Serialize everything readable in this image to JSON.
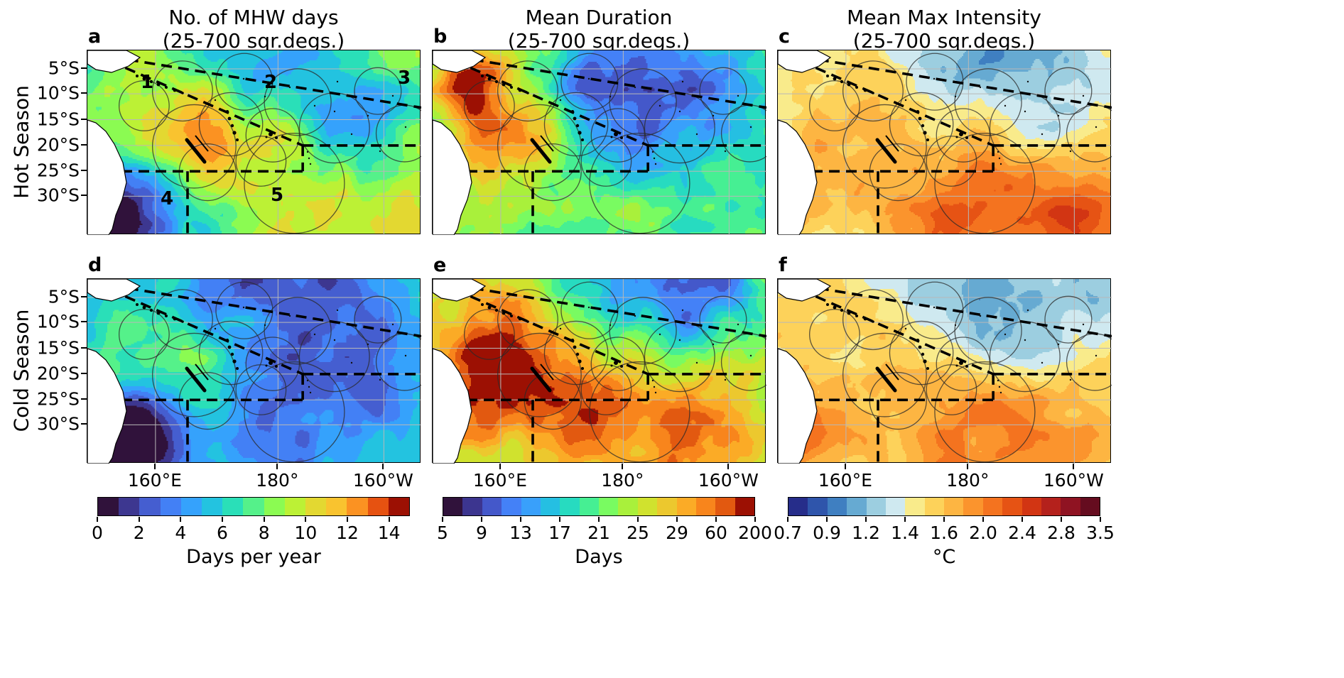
{
  "figure": {
    "background": "#ffffff"
  },
  "columns": [
    {
      "title_line1": "No. of MHW days",
      "title_line2": "(25-700 sqr.degs.)"
    },
    {
      "title_line1": "Mean Duration",
      "title_line2": "(25-700 sqr.degs.)"
    },
    {
      "title_line1": "Mean Max Intensity",
      "title_line2": "(25-700 sqr.degs.)"
    }
  ],
  "rows": [
    {
      "label": "Hot Season"
    },
    {
      "label": "Cold Season"
    }
  ],
  "panels": [
    {
      "letter": "a"
    },
    {
      "letter": "b"
    },
    {
      "letter": "c"
    },
    {
      "letter": "d"
    },
    {
      "letter": "e"
    },
    {
      "letter": "f"
    }
  ],
  "region_numbers": [
    "1",
    "2",
    "3",
    "4",
    "5"
  ],
  "axes": {
    "lat_ticks": [
      "5°S",
      "10°S",
      "15°S",
      "20°S",
      "25°S",
      "30°S"
    ],
    "lon_ticks": [
      "160°E",
      "180°",
      "160°W"
    ]
  },
  "colorbars": [
    {
      "label": "Days per year",
      "ticks": [
        "0",
        "2",
        "4",
        "6",
        "8",
        "10",
        "12",
        "14"
      ],
      "colors": [
        "#30123b",
        "#3d3790",
        "#455ed0",
        "#4380f5",
        "#35a2fc",
        "#23c3e0",
        "#2adfb8",
        "#55f18a",
        "#8bfb52",
        "#bcf135",
        "#e3d831",
        "#f9c32f",
        "#fb9222",
        "#e65211",
        "#9c1003"
      ]
    },
    {
      "label": "Days",
      "ticks": [
        "5",
        "9",
        "13",
        "17",
        "21",
        "25",
        "29",
        "60",
        "200"
      ],
      "colors": [
        "#30123b",
        "#3c358f",
        "#4458ca",
        "#4481f7",
        "#39a0fb",
        "#25bfe2",
        "#27dbc0",
        "#46ef93",
        "#79fb61",
        "#a9f03b",
        "#d0e22e",
        "#ecc82e",
        "#fbab26",
        "#f8851c",
        "#e25910",
        "#9c1003"
      ]
    },
    {
      "label": "°C",
      "ticks": [
        "0.7",
        "0.9",
        "1.2",
        "1.4",
        "1.6",
        "2.0",
        "2.4",
        "2.8",
        "3.5"
      ],
      "colors": [
        "#262d8a",
        "#2f55ab",
        "#3f7fc1",
        "#66aad2",
        "#9ccee0",
        "#cfe9f0",
        "#f9eb8b",
        "#fdd25a",
        "#fdb542",
        "#fb942d",
        "#f4731f",
        "#e65314",
        "#d23513",
        "#b4211c",
        "#8f1322",
        "#650c1f"
      ]
    }
  ],
  "chart_data": {
    "type": "heatmap",
    "title": "Marine heatwave (MHW) metrics over the Southwest Pacific for 25-700 sqr.degs. regions",
    "layout": "2 rows (Hot Season, Cold Season) x 3 columns (No. of MHW days, Mean Duration, Mean Max Intensity); shared lat/lon axes; discrete colorbar under each column",
    "x_ticks": [
      "160°E",
      "180°",
      "160°W"
    ],
    "y_ticks": [
      "5°S",
      "10°S",
      "15°S",
      "20°S",
      "25°S",
      "30°S"
    ],
    "approx_extent": {
      "lon": "≈150°E to 145°W",
      "lat": "≈2°S to 37°S"
    },
    "grid": true,
    "annotations": "Thick dashed black lines delimit five analysis regions, labelled 1-5 in panel a (1 Coral Sea NW, 2 central tropics, 3 NE tropics above the diagonal, 4 Tasman/SW, 5 central subtropics). Thin solid outlines are the 25-700 sqr.deg. MHW detection regions around island groups; land (Australia, New Guinea) is blank white; islands (Solomons, Vanuatu, New Caledonia, Fiji) drawn in black.",
    "panels": [
      {
        "id": "a",
        "row": "Hot Season",
        "column": "No. of MHW days",
        "units": "Days per year",
        "scale_values": [
          0,
          2,
          4,
          6,
          8,
          10,
          12,
          14
        ],
        "pattern": "8-14 days/yr (orange-red) over the Coral Sea near New Caledonia, around Fiji and in the subtropics south of 25°S; 2-6 days/yr (blue) over the central/NE tropics; minimum <2 (dark purple) in the SW Tasman corner."
      },
      {
        "id": "b",
        "row": "Hot Season",
        "column": "Mean Duration",
        "units": "Days",
        "scale_values": [
          5,
          9,
          13,
          17,
          21,
          25,
          29,
          60,
          200
        ],
        "pattern": "Longest events (29-200 days, orange) in the NW over the Solomon/Coral Seas; mostly 9-17 days (blue-cyan) in the central and eastern basin; 13-25 days (green-yellow) in the south."
      },
      {
        "id": "c",
        "row": "Hot Season",
        "column": "Mean Max Intensity",
        "units": "°C",
        "scale_values": [
          0.7,
          0.9,
          1.2,
          1.4,
          1.6,
          2.0,
          2.4,
          2.8,
          3.5
        ],
        "pattern": "Mostly 1.2-1.6 °C (light blue to yellow); cooler 0.9-1.2 °C band NE of the dashed diagonal; 1.6-2.8 °C (orange) south of ~25°S and along the Australian coast."
      },
      {
        "id": "d",
        "row": "Cold Season",
        "column": "No. of MHW days",
        "units": "Days per year",
        "scale_values": [
          0,
          2,
          4,
          6,
          8,
          10,
          12,
          14
        ],
        "pattern": "Mostly 4-8 days/yr (blue-green); 2-4 days/yr in the NE tropics; minimum <2 (dark purple) in the SW Tasman corner; 6-10 days/yr (green-yellow) in the western Coral Sea."
      },
      {
        "id": "e",
        "row": "Cold Season",
        "column": "Mean Duration",
        "units": "Days",
        "scale_values": [
          5,
          9,
          13,
          17,
          21,
          25,
          29,
          60,
          200
        ],
        "pattern": "Longest events (29-200 days, orange-red) across most of the Coral Sea, Tasman region and subtropics; 9-17 day (blue) band in the NE tropics."
      },
      {
        "id": "f",
        "row": "Cold Season",
        "column": "Mean Max Intensity",
        "units": "°C",
        "scale_values": [
          0.7,
          0.9,
          1.2,
          1.4,
          1.6,
          2.0,
          2.4,
          2.8,
          3.5
        ],
        "pattern": "Mostly 1.2-1.6 °C; 0.9-1.2 °C in the NE tropical band; 1.6-2.8 °C near the SE Australian coast and in the southern subtropics."
      }
    ]
  }
}
